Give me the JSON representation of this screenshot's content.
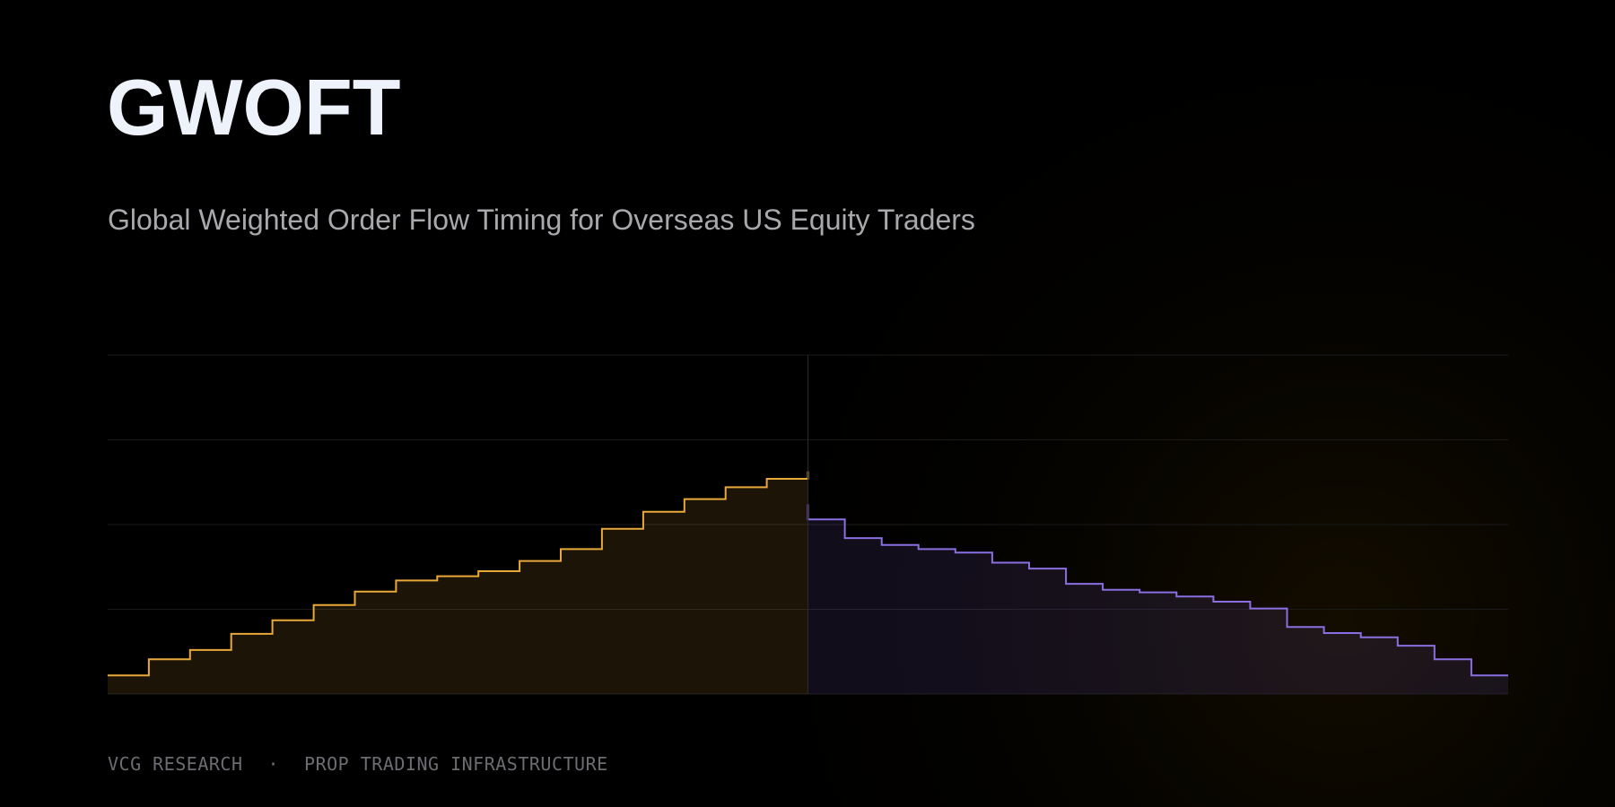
{
  "header": {
    "title": "GWOFT",
    "subtitle": "Global Weighted Order Flow Timing for Overseas US Equity Traders"
  },
  "chart_data": {
    "type": "step",
    "xlim": [
      0,
      646
    ],
    "ylim": [
      0,
      4
    ],
    "yticks": [
      0,
      1,
      2,
      3,
      4
    ],
    "grid": true,
    "series": [
      {
        "color": "#e8a93a",
        "x": [
          0,
          19,
          38,
          57,
          76,
          95,
          114,
          133,
          152,
          171,
          190,
          209,
          228,
          247,
          266,
          285,
          304,
          323
        ],
        "values": [
          0.22,
          0.41,
          0.52,
          0.71,
          0.87,
          1.05,
          1.21,
          1.34,
          1.39,
          1.45,
          1.57,
          1.71,
          1.95,
          2.15,
          2.3,
          2.44,
          2.54,
          2.63
        ]
      },
      {
        "color": "#8a6fe0",
        "x": [
          323,
          323,
          340,
          357,
          374,
          391,
          408,
          425,
          442,
          459,
          476,
          493,
          510,
          527,
          544,
          561,
          578,
          595,
          612,
          629,
          646
        ],
        "values": [
          2.24,
          2.06,
          1.84,
          1.76,
          1.71,
          1.67,
          1.55,
          1.48,
          1.3,
          1.23,
          1.2,
          1.15,
          1.09,
          1.01,
          0.79,
          0.72,
          0.67,
          0.57,
          0.41,
          0.22,
          0.22
        ]
      }
    ]
  },
  "footer": {
    "items": [
      "VCG RESEARCH",
      "·",
      "PROP TRADING INFRASTRUCTURE"
    ]
  }
}
